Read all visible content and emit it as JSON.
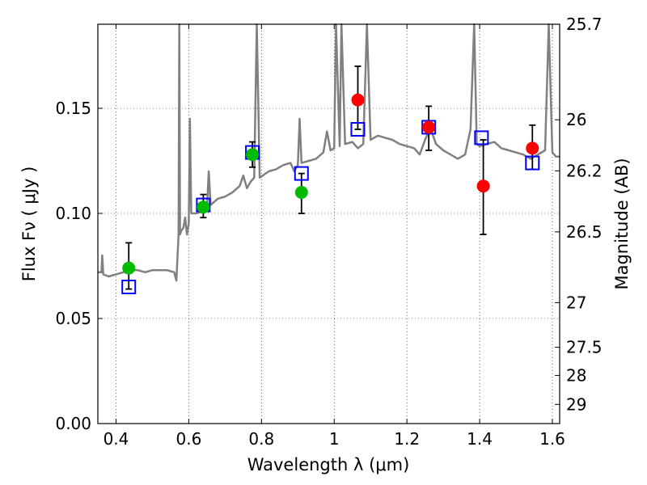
{
  "chart_data": {
    "type": "scatter",
    "title": "",
    "xlabel": "Wavelength  λ (μm)",
    "ylabel": "Flux  Fν  ( μJy )",
    "y2label": "Magnitude (AB)",
    "xlim": [
      0.35,
      1.62
    ],
    "ylim": [
      0.0,
      0.19
    ],
    "xticks": [
      0.4,
      0.6,
      0.8,
      1.0,
      1.2,
      1.4,
      1.6
    ],
    "xtick_labels": [
      "0.4",
      "0.6",
      "0.8",
      "1",
      "1.2",
      "1.4",
      "1.6"
    ],
    "yticks": [
      0.0,
      0.05,
      0.1,
      0.15
    ],
    "ytick_labels": [
      "0.00",
      "0.05",
      "0.10",
      "0.15"
    ],
    "y2ticks": [
      {
        "label": "25.7",
        "mag": 25.7
      },
      {
        "label": "26",
        "mag": 26.0
      },
      {
        "label": "26.2",
        "mag": 26.2
      },
      {
        "label": "26.5",
        "mag": 26.5
      },
      {
        "label": "27",
        "mag": 27.0
      },
      {
        "label": "27.5",
        "mag": 27.5
      },
      {
        "label": "28",
        "mag": 28.0
      },
      {
        "label": "29",
        "mag": 29.0
      }
    ],
    "grid": true,
    "colors": {
      "model": "#808080",
      "green_points": "#00bb00",
      "red_points": "#ff0000",
      "model_boxes": "#0000ff",
      "errorbars": "#000000"
    },
    "model_spectrum": [
      [
        0.35,
        0.072
      ],
      [
        0.36,
        0.072
      ],
      [
        0.362,
        0.08
      ],
      [
        0.365,
        0.071
      ],
      [
        0.38,
        0.07
      ],
      [
        0.4,
        0.071
      ],
      [
        0.42,
        0.072
      ],
      [
        0.44,
        0.073
      ],
      [
        0.46,
        0.073
      ],
      [
        0.48,
        0.072
      ],
      [
        0.5,
        0.073
      ],
      [
        0.52,
        0.073
      ],
      [
        0.54,
        0.073
      ],
      [
        0.56,
        0.072
      ],
      [
        0.566,
        0.068
      ],
      [
        0.572,
        0.09
      ],
      [
        0.574,
        0.19
      ],
      [
        0.576,
        0.09
      ],
      [
        0.58,
        0.092
      ],
      [
        0.585,
        0.093
      ],
      [
        0.59,
        0.098
      ],
      [
        0.595,
        0.09
      ],
      [
        0.6,
        0.095
      ],
      [
        0.603,
        0.145
      ],
      [
        0.607,
        0.1
      ],
      [
        0.62,
        0.1
      ],
      [
        0.64,
        0.101
      ],
      [
        0.65,
        0.102
      ],
      [
        0.655,
        0.12
      ],
      [
        0.66,
        0.104
      ],
      [
        0.68,
        0.107
      ],
      [
        0.7,
        0.108
      ],
      [
        0.72,
        0.11
      ],
      [
        0.74,
        0.113
      ],
      [
        0.75,
        0.118
      ],
      [
        0.76,
        0.112
      ],
      [
        0.77,
        0.115
      ],
      [
        0.78,
        0.117
      ],
      [
        0.787,
        0.19
      ],
      [
        0.795,
        0.117
      ],
      [
        0.82,
        0.12
      ],
      [
        0.84,
        0.121
      ],
      [
        0.86,
        0.123
      ],
      [
        0.88,
        0.124
      ],
      [
        0.89,
        0.12
      ],
      [
        0.9,
        0.123
      ],
      [
        0.905,
        0.145
      ],
      [
        0.91,
        0.124
      ],
      [
        0.93,
        0.125
      ],
      [
        0.95,
        0.126
      ],
      [
        0.97,
        0.129
      ],
      [
        0.98,
        0.139
      ],
      [
        0.99,
        0.13
      ],
      [
        1.0,
        0.131
      ],
      [
        1.005,
        0.19
      ],
      [
        1.015,
        0.132
      ],
      [
        1.02,
        0.19
      ],
      [
        1.03,
        0.133
      ],
      [
        1.05,
        0.134
      ],
      [
        1.065,
        0.131
      ],
      [
        1.08,
        0.133
      ],
      [
        1.09,
        0.19
      ],
      [
        1.1,
        0.135
      ],
      [
        1.12,
        0.137
      ],
      [
        1.14,
        0.136
      ],
      [
        1.16,
        0.135
      ],
      [
        1.18,
        0.133
      ],
      [
        1.2,
        0.132
      ],
      [
        1.22,
        0.131
      ],
      [
        1.235,
        0.128
      ],
      [
        1.25,
        0.135
      ],
      [
        1.26,
        0.139
      ],
      [
        1.27,
        0.138
      ],
      [
        1.28,
        0.133
      ],
      [
        1.3,
        0.13
      ],
      [
        1.32,
        0.128
      ],
      [
        1.34,
        0.126
      ],
      [
        1.36,
        0.128
      ],
      [
        1.375,
        0.14
      ],
      [
        1.385,
        0.19
      ],
      [
        1.392,
        0.133
      ],
      [
        1.4,
        0.132
      ],
      [
        1.42,
        0.133
      ],
      [
        1.44,
        0.134
      ],
      [
        1.46,
        0.131
      ],
      [
        1.48,
        0.13
      ],
      [
        1.5,
        0.129
      ],
      [
        1.52,
        0.128
      ],
      [
        1.54,
        0.126
      ],
      [
        1.56,
        0.128
      ],
      [
        1.58,
        0.13
      ],
      [
        1.59,
        0.19
      ],
      [
        1.6,
        0.129
      ],
      [
        1.61,
        0.127
      ],
      [
        1.62,
        0.127
      ]
    ],
    "green_points": [
      {
        "x": 0.435,
        "y": 0.074,
        "yerr_low": 0.064,
        "yerr_high": 0.086
      },
      {
        "x": 0.64,
        "y": 0.103,
        "yerr_low": 0.098,
        "yerr_high": 0.109
      },
      {
        "x": 0.775,
        "y": 0.128,
        "yerr_low": 0.122,
        "yerr_high": 0.134
      },
      {
        "x": 0.91,
        "y": 0.11,
        "yerr_low": 0.1,
        "yerr_high": 0.119
      }
    ],
    "red_points": [
      {
        "x": 1.065,
        "y": 0.154,
        "yerr_low": 0.14,
        "yerr_high": 0.17
      },
      {
        "x": 1.26,
        "y": 0.141,
        "yerr_low": 0.13,
        "yerr_high": 0.151
      },
      {
        "x": 1.41,
        "y": 0.113,
        "yerr_low": 0.09,
        "yerr_high": 0.135
      },
      {
        "x": 1.545,
        "y": 0.131,
        "yerr_low": 0.121,
        "yerr_high": 0.142
      }
    ],
    "model_boxes": [
      {
        "x": 0.435,
        "y": 0.065
      },
      {
        "x": 0.64,
        "y": 0.104
      },
      {
        "x": 0.775,
        "y": 0.129
      },
      {
        "x": 0.91,
        "y": 0.119
      },
      {
        "x": 1.065,
        "y": 0.14
      },
      {
        "x": 1.26,
        "y": 0.141
      },
      {
        "x": 1.405,
        "y": 0.136
      },
      {
        "x": 1.545,
        "y": 0.124
      }
    ]
  }
}
